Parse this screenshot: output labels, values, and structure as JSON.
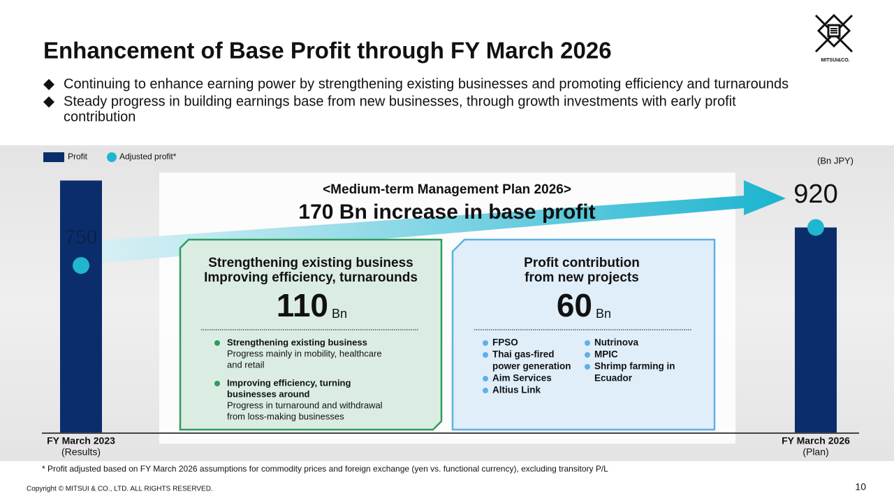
{
  "header": {
    "title": "Enhancement of Base Profit through FY March 2026",
    "bullets": [
      [
        "Continuing to enhance earning power by strengthening existing businesses and promoting efficiency and turnarounds"
      ],
      [
        "Steady progress in building earnings base from new businesses, through growth investments with early profit",
        "contribution"
      ]
    ],
    "logo": "MITSUI&CO."
  },
  "chart_data": {
    "type": "bar",
    "unit": "(Bn JPY)",
    "categories": [
      "FY March 2023",
      "FY March 2026"
    ],
    "category_notes": [
      "(Results)",
      "(Plan)"
    ],
    "series": [
      {
        "name": "Profit",
        "color": "#0b2d6b",
        "values": [
          1130,
          920
        ]
      },
      {
        "name": "Adjusted profit*",
        "color": "#21b6cf",
        "values": [
          750,
          920
        ],
        "marker": "dot"
      }
    ],
    "ylim": [
      0,
      1250
    ]
  },
  "plan": {
    "heading": "<Medium-term Management Plan 2026>",
    "summary": "170 Bn increase in base profit",
    "boxes": [
      {
        "title_lines": [
          "Strengthening existing business",
          "Improving efficiency, turnarounds"
        ],
        "amount": 110,
        "unit": "Bn",
        "items": [
          {
            "label": [
              "Strengthening existing business"
            ],
            "detail": [
              "Progress mainly in mobility, healthcare",
              "and retail"
            ]
          },
          {
            "label": [
              "Improving efficiency, turning",
              "businesses around"
            ],
            "detail": [
              "Progress in turnaround and withdrawal",
              "from loss-making businesses"
            ]
          }
        ]
      },
      {
        "title_lines": [
          "Profit contribution",
          "from new projects"
        ],
        "amount": 60,
        "unit": "Bn",
        "columns": [
          [
            [
              "FPSO"
            ],
            [
              "Thai gas-fired",
              "power generation"
            ],
            [
              "Aim Services"
            ],
            [
              "Altius Link"
            ]
          ],
          [
            [
              "Nutrinova"
            ],
            [
              "MPIC"
            ],
            [
              "Shrimp farming in",
              "Ecuador"
            ]
          ]
        ]
      }
    ]
  },
  "footnote": "* Profit adjusted based on FY March 2026 assumptions for commodity prices and foreign exchange (yen vs. functional currency), excluding transitory P/L",
  "copyright": "Copyright © MITSUI & CO., LTD. ALL RIGHTS RESERVED.",
  "page_number": 10
}
